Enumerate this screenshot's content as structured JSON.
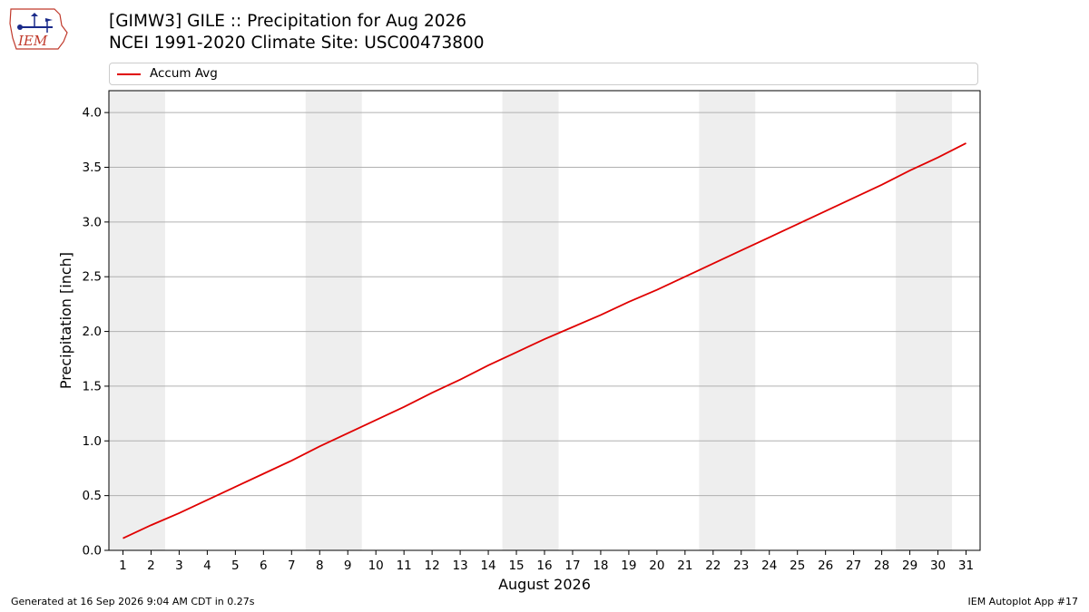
{
  "header": {
    "title_line1": "[GIMW3] GILE :: Precipitation for Aug 2026",
    "title_line2": "NCEI 1991-2020 Climate Site: USC00473800"
  },
  "logo": {
    "text": "IEM",
    "icon": "iem-logo-icon"
  },
  "legend": {
    "series_label": "Accum Avg"
  },
  "footer": {
    "generated": "Generated at 16 Sep 2026 9:04 AM CDT in 0.27s",
    "app": "IEM Autoplot App #17"
  },
  "chart_data": {
    "type": "line",
    "title": "[GIMW3] GILE :: Precipitation for Aug 2026",
    "subtitle": "NCEI 1991-2020 Climate Site: USC00473800",
    "xlabel": "August 2026",
    "ylabel": "Precipitation [inch]",
    "x": [
      1,
      2,
      3,
      4,
      5,
      6,
      7,
      8,
      9,
      10,
      11,
      12,
      13,
      14,
      15,
      16,
      17,
      18,
      19,
      20,
      21,
      22,
      23,
      24,
      25,
      26,
      27,
      28,
      29,
      30,
      31
    ],
    "xlim": [
      0.5,
      31.5
    ],
    "ylim": [
      0,
      4.2
    ],
    "yticks": [
      0.0,
      0.5,
      1.0,
      1.5,
      2.0,
      2.5,
      3.0,
      3.5,
      4.0
    ],
    "ytick_labels": [
      "0.0",
      "0.5",
      "1.0",
      "1.5",
      "2.0",
      "2.5",
      "3.0",
      "3.5",
      "4.0"
    ],
    "weekend_bands": [
      [
        1,
        2
      ],
      [
        8,
        9
      ],
      [
        15,
        16
      ],
      [
        22,
        23
      ],
      [
        29,
        30
      ]
    ],
    "grid": true,
    "legend_position": "top",
    "colors": {
      "line": "#e00000",
      "band": "#eeeeee",
      "grid": "#b0b0b0"
    },
    "series": [
      {
        "name": "Accum Avg",
        "values": [
          0.11,
          0.23,
          0.34,
          0.46,
          0.58,
          0.7,
          0.82,
          0.95,
          1.07,
          1.19,
          1.31,
          1.44,
          1.56,
          1.69,
          1.81,
          1.93,
          2.04,
          2.15,
          2.27,
          2.38,
          2.5,
          2.62,
          2.74,
          2.86,
          2.98,
          3.1,
          3.22,
          3.34,
          3.47,
          3.59,
          3.72
        ]
      }
    ]
  }
}
